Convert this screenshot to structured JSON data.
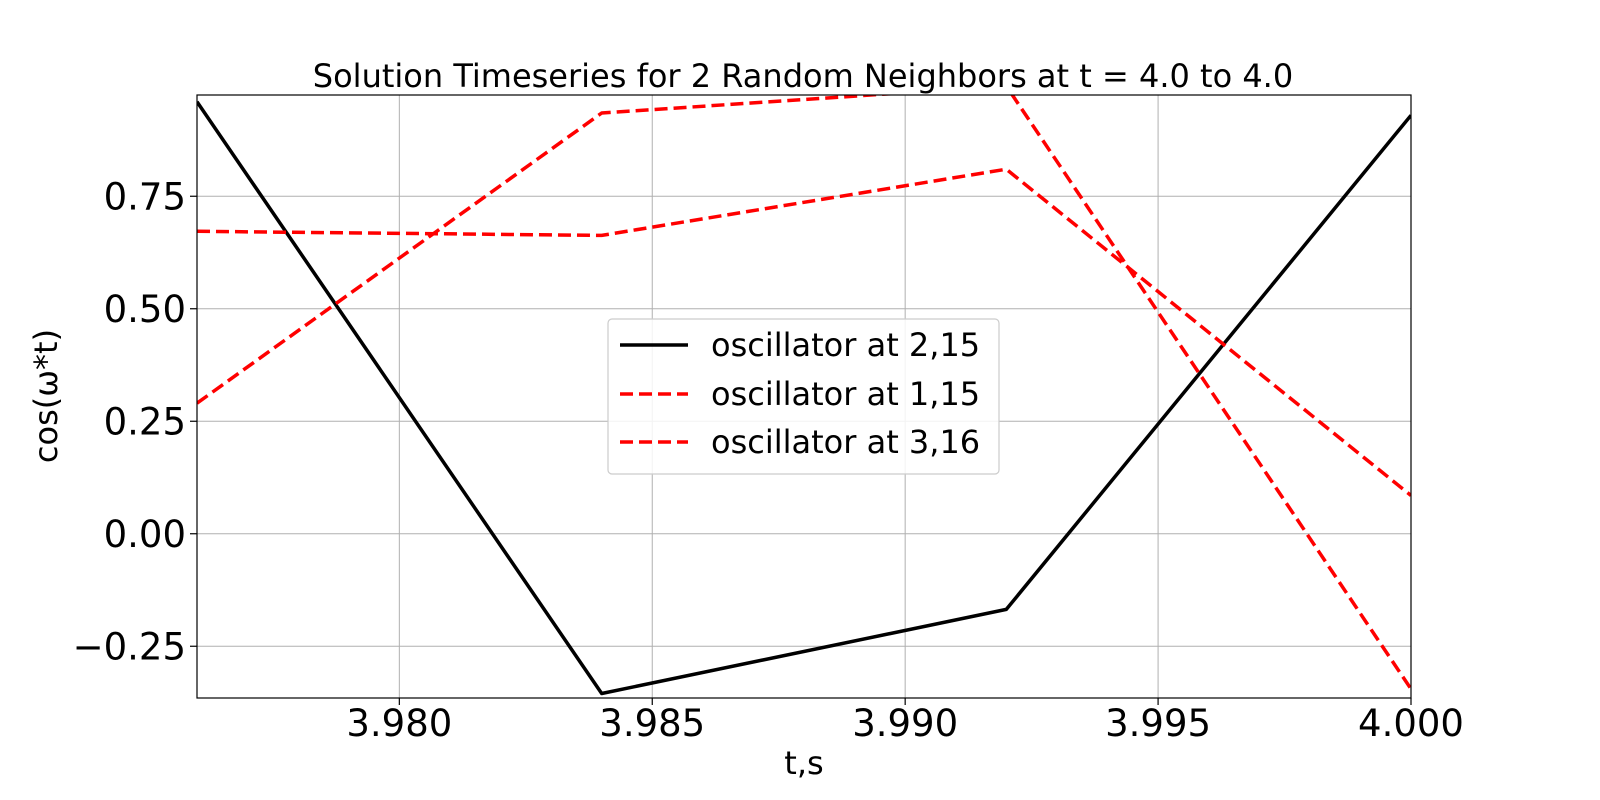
{
  "chart_data": {
    "type": "line",
    "title": "Solution Timeseries for 2 Random Neighbors at t = 4.0 to 4.0",
    "xlabel": "t,s",
    "ylabel": "cos(ω*t)",
    "xlim": [
      3.976,
      4.0
    ],
    "ylim": [
      -0.365,
      0.975
    ],
    "x_ticks": [
      3.98,
      3.985,
      3.99,
      3.995,
      4.0
    ],
    "x_tick_labels": [
      "3.980",
      "3.985",
      "3.990",
      "3.995",
      "4.000"
    ],
    "y_ticks": [
      -0.25,
      0.0,
      0.25,
      0.5,
      0.75
    ],
    "y_tick_labels": [
      "−0.25",
      "0.00",
      "0.25",
      "0.50",
      "0.75"
    ],
    "grid": true,
    "legend_position": "center",
    "series": [
      {
        "name": "oscillator at 2,15",
        "color": "#000000",
        "style": "solid",
        "x": [
          3.976,
          3.984,
          3.992,
          4.0
        ],
        "y": [
          0.96,
          -0.355,
          -0.168,
          0.93
        ]
      },
      {
        "name": "oscillator at 1,15",
        "color": "#ff0000",
        "style": "dashed",
        "x": [
          3.976,
          3.984,
          3.992,
          4.0
        ],
        "y": [
          0.29,
          0.935,
          0.995,
          -0.345
        ]
      },
      {
        "name": "oscillator at 3,16",
        "color": "#ff0000",
        "style": "dashed",
        "x": [
          3.976,
          3.984,
          3.992,
          4.0
        ],
        "y": [
          0.672,
          0.663,
          0.81,
          0.085
        ]
      }
    ]
  }
}
